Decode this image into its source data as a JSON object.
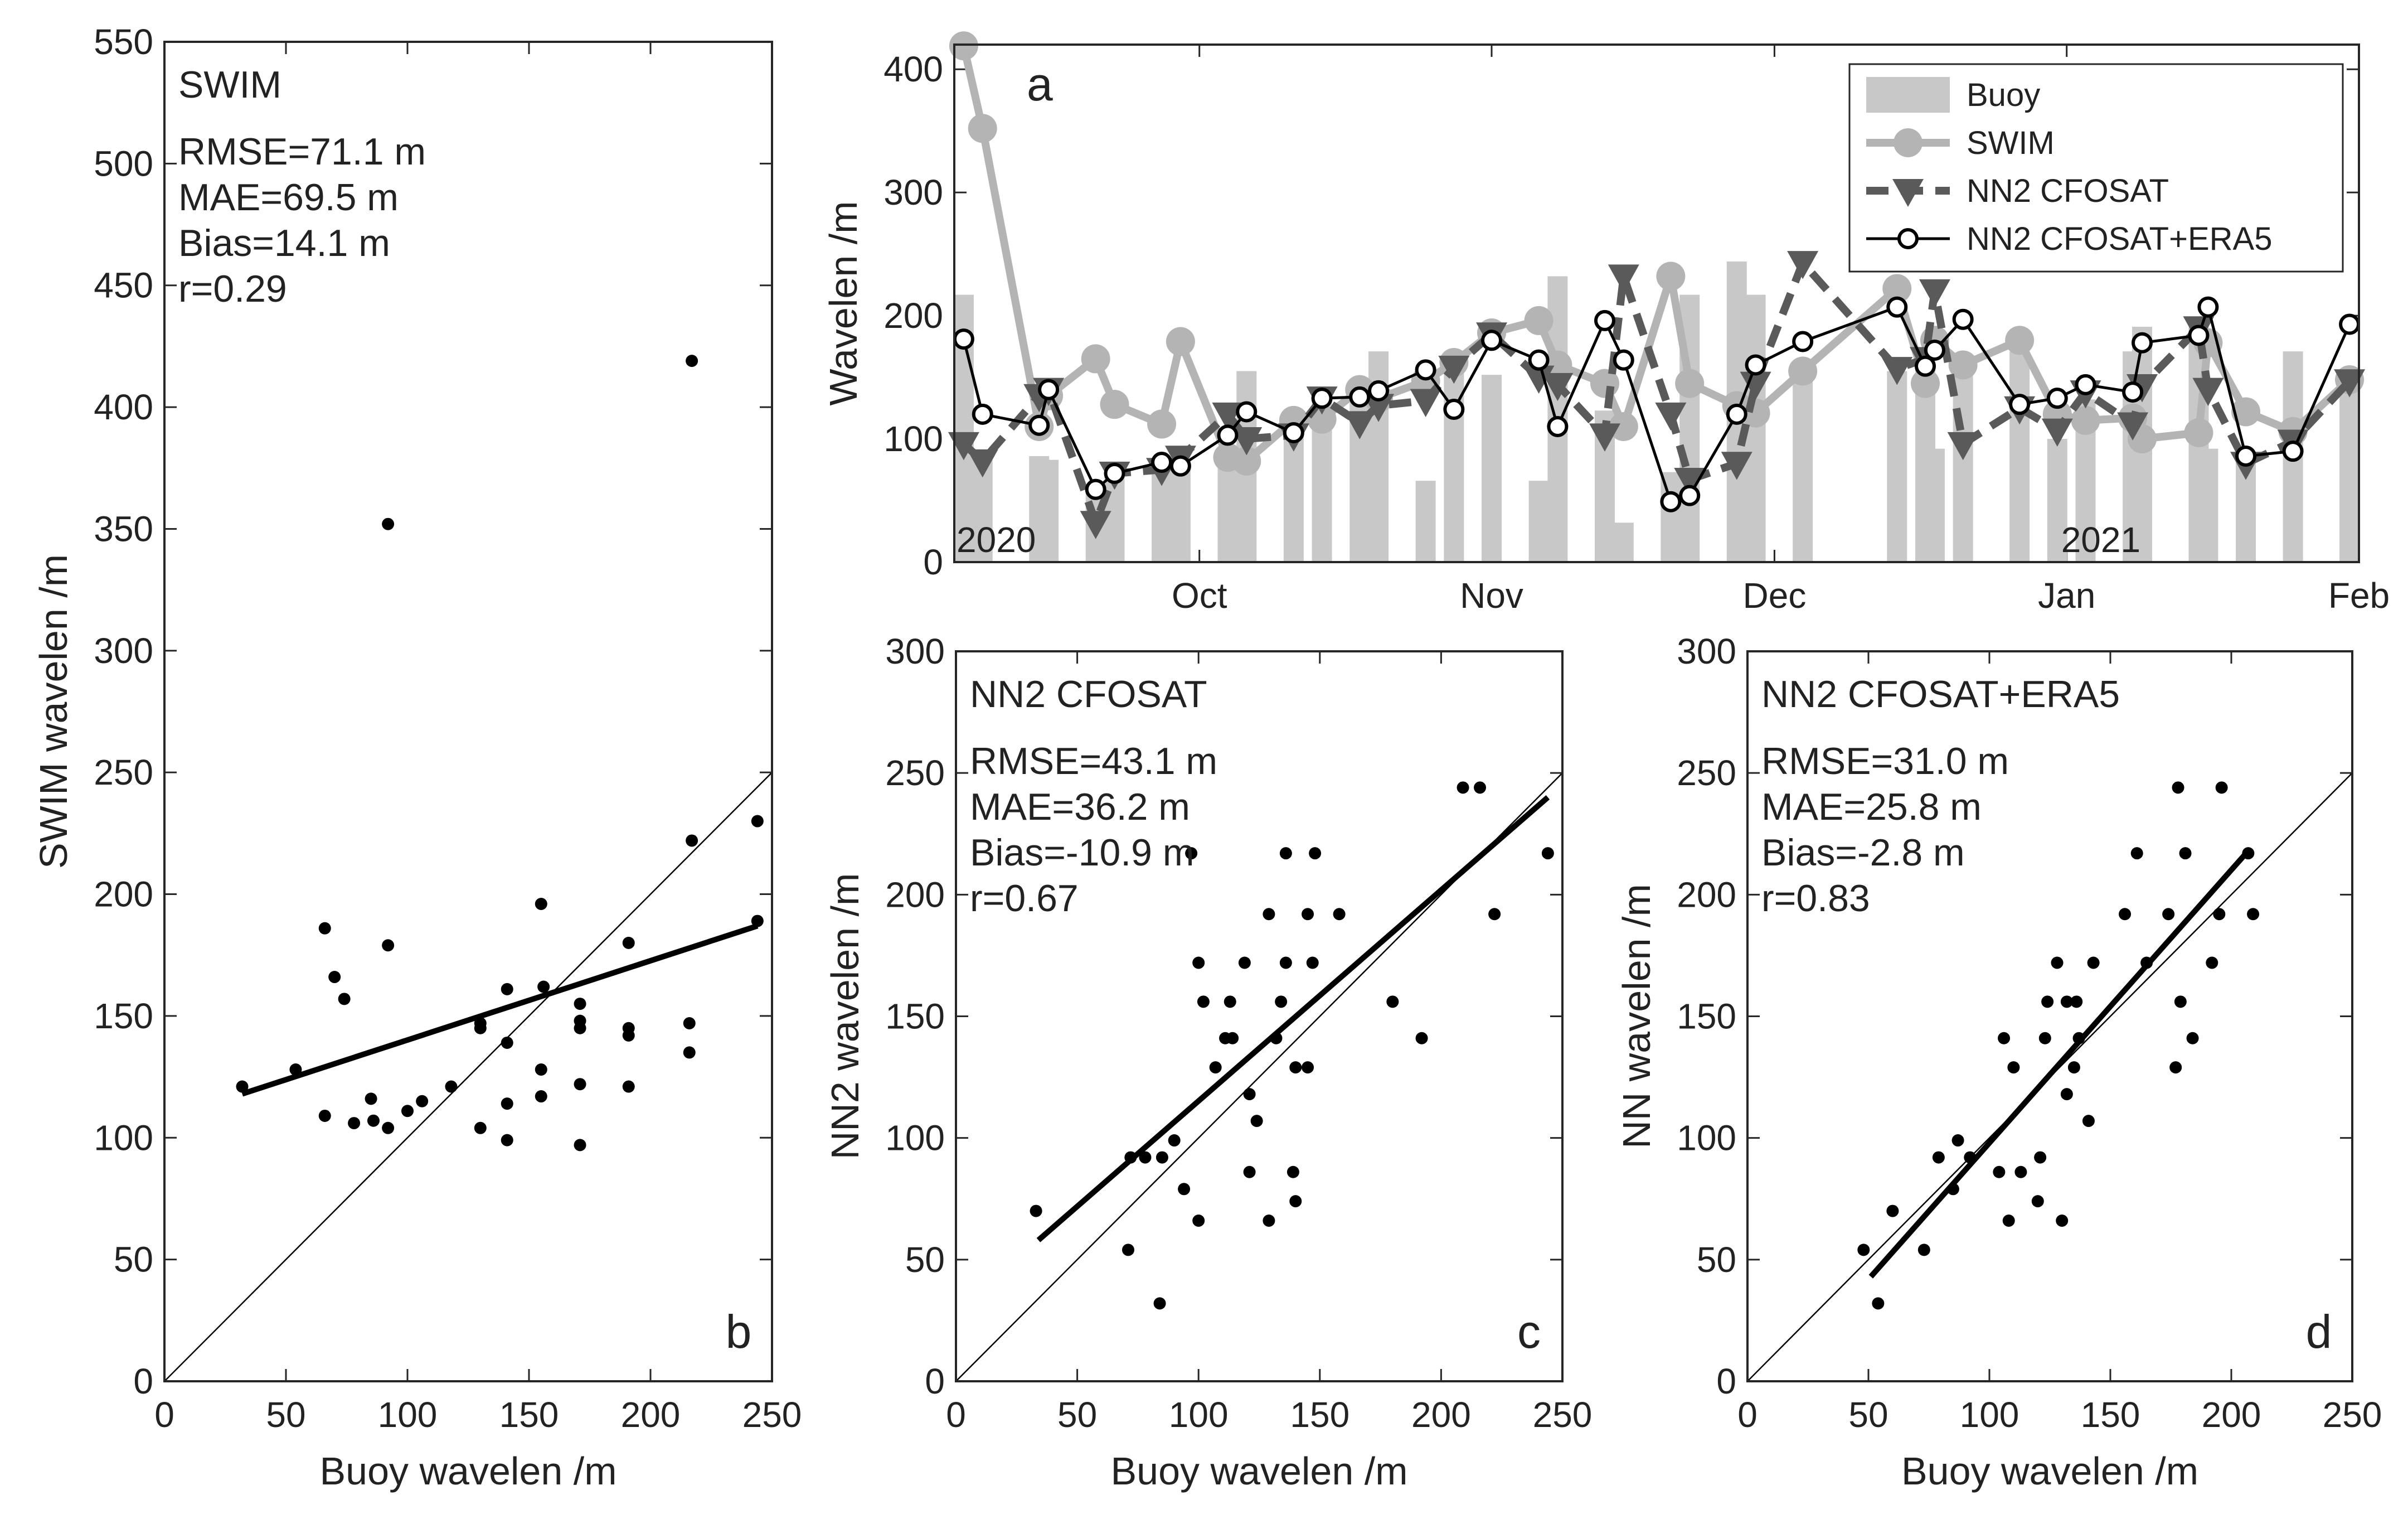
{
  "chart_data": [
    {
      "id": "a",
      "type": "line",
      "panel_label": "a",
      "ylabel": "Wavelen /m",
      "xlabel": "",
      "ylim": [
        0,
        420
      ],
      "yticks": [
        0,
        100,
        200,
        300,
        400
      ],
      "x_axis_type": "date",
      "xlim": [
        "2020-09-05",
        "2021-02-01"
      ],
      "xticks": [
        {
          "date": "2020-10-01",
          "label": "Oct"
        },
        {
          "date": "2020-11-01",
          "label": "Nov"
        },
        {
          "date": "2020-12-01",
          "label": "Dec"
        },
        {
          "date": "2021-01-01",
          "label": "Jan"
        },
        {
          "date": "2021-02-01",
          "label": "Feb"
        }
      ],
      "year_labels": [
        {
          "date": "2020-09-05",
          "label": "2020"
        },
        {
          "date": "2021-01-01",
          "label": "2021"
        }
      ],
      "legend_position": "top-right",
      "x": [
        "2020-09-06",
        "2020-09-08",
        "2020-09-14",
        "2020-09-15",
        "2020-09-20",
        "2020-09-22",
        "2020-09-27",
        "2020-09-29",
        "2020-10-04",
        "2020-10-06",
        "2020-10-11",
        "2020-10-14",
        "2020-10-18",
        "2020-10-20",
        "2020-10-25",
        "2020-10-28",
        "2020-11-01",
        "2020-11-06",
        "2020-11-08",
        "2020-11-13",
        "2020-11-15",
        "2020-11-20",
        "2020-11-22",
        "2020-11-27",
        "2020-11-29",
        "2020-12-04",
        "2020-12-14",
        "2020-12-17",
        "2020-12-18",
        "2020-12-21",
        "2020-12-27",
        "2020-12-31",
        "2021-01-03",
        "2021-01-08",
        "2021-01-09",
        "2021-01-15",
        "2021-01-16",
        "2021-01-20",
        "2021-01-25",
        "2021-01-31"
      ],
      "bars": {
        "name": "Buoy",
        "color": "#c8c8c8",
        "values": [
          217,
          83,
          86,
          83,
          60,
          72,
          84,
          83,
          86,
          155,
          123,
          130,
          137,
          171,
          66,
          155,
          152,
          66,
          232,
          123,
          32,
          73,
          217,
          244,
          217,
          155,
          155,
          171,
          92,
          155,
          171,
          100,
          132,
          171,
          191,
          191,
          92,
          86,
          171,
          155
        ]
      },
      "series": [
        {
          "name": "SWIM",
          "color": "#b4b4b4",
          "values": [
            419,
            352,
            110,
            135,
            165,
            128,
            112,
            179,
            85,
            82,
            115,
            116,
            140,
            133,
            147,
            162,
            186,
            196,
            160,
            145,
            110,
            232,
            145,
            127,
            121,
            155,
            222,
            145,
            180,
            160,
            180,
            120,
            115,
            117,
            100,
            105,
            178,
            122,
            106,
            148
          ]
        },
        {
          "name": "NN2 CFOSAT",
          "color": "#5a5a5a",
          "values": [
            96,
            82,
            135,
            140,
            32,
            72,
            75,
            85,
            120,
            100,
            103,
            133,
            113,
            127,
            131,
            158,
            185,
            150,
            144,
            103,
            232,
            120,
            67,
            80,
            145,
            243,
            157,
            165,
            220,
            96,
            125,
            107,
            138,
            112,
            143,
            190,
            140,
            80,
            98,
            147
          ]
        },
        {
          "name": "NN2 CFOSAT+ERA5",
          "color": "#000000",
          "values": [
            181,
            120,
            111,
            140,
            59,
            72,
            81,
            78,
            103,
            122,
            105,
            133,
            134,
            139,
            156,
            124,
            180,
            164,
            110,
            196,
            164,
            49,
            54,
            120,
            160,
            179,
            207,
            159,
            172,
            197,
            128,
            133,
            144,
            138,
            178,
            184,
            207,
            86,
            90,
            193
          ]
        }
      ]
    },
    {
      "id": "b",
      "type": "scatter",
      "panel_label": "b",
      "xlabel": "Buoy wavelen /m",
      "ylabel": "SWIM wavelen /m",
      "xlim": [
        0,
        250
      ],
      "ylim": [
        0,
        550
      ],
      "xticks": [
        0,
        50,
        100,
        150,
        200,
        250
      ],
      "yticks": [
        0,
        50,
        100,
        150,
        200,
        250,
        300,
        350,
        400,
        450,
        500,
        550
      ],
      "annotation": [
        "SWIM",
        "RMSE=71.1 m",
        "MAE=69.5 m",
        "Bias=14.1 m",
        "r=0.29"
      ],
      "fit_line": [
        [
          32,
          118
        ],
        [
          244,
          187
        ]
      ],
      "one_to_one": true,
      "points": [
        [
          32,
          121
        ],
        [
          54,
          128
        ],
        [
          66,
          109
        ],
        [
          66,
          186
        ],
        [
          70,
          166
        ],
        [
          74,
          157
        ],
        [
          78,
          106
        ],
        [
          85,
          116
        ],
        [
          86,
          107
        ],
        [
          92,
          104
        ],
        [
          92,
          179
        ],
        [
          92,
          352
        ],
        [
          100,
          111
        ],
        [
          106,
          115
        ],
        [
          118,
          121
        ],
        [
          130,
          104
        ],
        [
          130,
          145
        ],
        [
          130,
          147
        ],
        [
          141,
          99
        ],
        [
          141,
          114
        ],
        [
          141,
          139
        ],
        [
          141,
          161
        ],
        [
          155,
          117
        ],
        [
          155,
          128
        ],
        [
          155,
          196
        ],
        [
          156,
          162
        ],
        [
          171,
          97
        ],
        [
          171,
          122
        ],
        [
          171,
          145
        ],
        [
          171,
          148
        ],
        [
          171,
          155
        ],
        [
          191,
          121
        ],
        [
          191,
          142
        ],
        [
          191,
          145
        ],
        [
          191,
          180
        ],
        [
          216,
          135
        ],
        [
          216,
          147
        ],
        [
          217,
          222
        ],
        [
          217,
          419
        ],
        [
          244,
          189
        ],
        [
          244,
          230
        ]
      ]
    },
    {
      "id": "c",
      "type": "scatter",
      "panel_label": "c",
      "xlabel": "Buoy wavelen /m",
      "ylabel": "NN2 wavelen /m",
      "xlim": [
        0,
        250
      ],
      "ylim": [
        0,
        300
      ],
      "xticks": [
        0,
        50,
        100,
        150,
        200,
        250
      ],
      "yticks": [
        0,
        50,
        100,
        150,
        200,
        250,
        300
      ],
      "annotation": [
        "NN2 CFOSAT",
        "RMSE=43.1 m",
        "MAE=36.2 m",
        "Bias=-10.9 m",
        "r=0.67"
      ],
      "fit_line": [
        [
          34,
          58
        ],
        [
          244,
          240
        ]
      ],
      "one_to_one": true,
      "points": [
        [
          33,
          70
        ],
        [
          71,
          54
        ],
        [
          72,
          92
        ],
        [
          78,
          92
        ],
        [
          84,
          32
        ],
        [
          85,
          92
        ],
        [
          90,
          99
        ],
        [
          94,
          79
        ],
        [
          97,
          217
        ],
        [
          100,
          66
        ],
        [
          100,
          172
        ],
        [
          102,
          156
        ],
        [
          107,
          129
        ],
        [
          111,
          141
        ],
        [
          113,
          156
        ],
        [
          114,
          141
        ],
        [
          119,
          172
        ],
        [
          121,
          118
        ],
        [
          121,
          86
        ],
        [
          124,
          107
        ],
        [
          129,
          66
        ],
        [
          129,
          192
        ],
        [
          132,
          141
        ],
        [
          134,
          156
        ],
        [
          136,
          172
        ],
        [
          136,
          217
        ],
        [
          139,
          86
        ],
        [
          140,
          74
        ],
        [
          140,
          129
        ],
        [
          145,
          129
        ],
        [
          145,
          192
        ],
        [
          147,
          172
        ],
        [
          148,
          217
        ],
        [
          158,
          192
        ],
        [
          180,
          156
        ],
        [
          192,
          141
        ],
        [
          209,
          244
        ],
        [
          216,
          244
        ],
        [
          222,
          192
        ],
        [
          244,
          217
        ]
      ]
    },
    {
      "id": "d",
      "type": "scatter",
      "panel_label": "d",
      "xlabel": "Buoy wavelen /m",
      "ylabel": "NN wavelen /m",
      "xlim": [
        0,
        250
      ],
      "ylim": [
        0,
        300
      ],
      "xticks": [
        0,
        50,
        100,
        150,
        200,
        250
      ],
      "yticks": [
        0,
        50,
        100,
        150,
        200,
        250,
        300
      ],
      "annotation": [
        "NN2 CFOSAT+ERA5",
        "RMSE=31.0 m",
        "MAE=25.8 m",
        "Bias=-2.8 m",
        "r=0.83"
      ],
      "fit_line": [
        [
          51,
          43
        ],
        [
          207,
          218
        ]
      ],
      "one_to_one": true,
      "points": [
        [
          48,
          54
        ],
        [
          54,
          32
        ],
        [
          60,
          70
        ],
        [
          73,
          54
        ],
        [
          79,
          92
        ],
        [
          85,
          79
        ],
        [
          87,
          99
        ],
        [
          92,
          92
        ],
        [
          104,
          86
        ],
        [
          106,
          141
        ],
        [
          108,
          66
        ],
        [
          110,
          129
        ],
        [
          113,
          86
        ],
        [
          120,
          74
        ],
        [
          121,
          92
        ],
        [
          123,
          141
        ],
        [
          124,
          156
        ],
        [
          128,
          172
        ],
        [
          130,
          66
        ],
        [
          132,
          118
        ],
        [
          132,
          156
        ],
        [
          135,
          129
        ],
        [
          136,
          156
        ],
        [
          137,
          141
        ],
        [
          141,
          107
        ],
        [
          143,
          172
        ],
        [
          156,
          192
        ],
        [
          161,
          217
        ],
        [
          165,
          172
        ],
        [
          174,
          192
        ],
        [
          177,
          129
        ],
        [
          178,
          244
        ],
        [
          179,
          156
        ],
        [
          181,
          217
        ],
        [
          184,
          141
        ],
        [
          192,
          172
        ],
        [
          195,
          192
        ],
        [
          196,
          244
        ],
        [
          207,
          217
        ],
        [
          209,
          192
        ]
      ]
    }
  ]
}
